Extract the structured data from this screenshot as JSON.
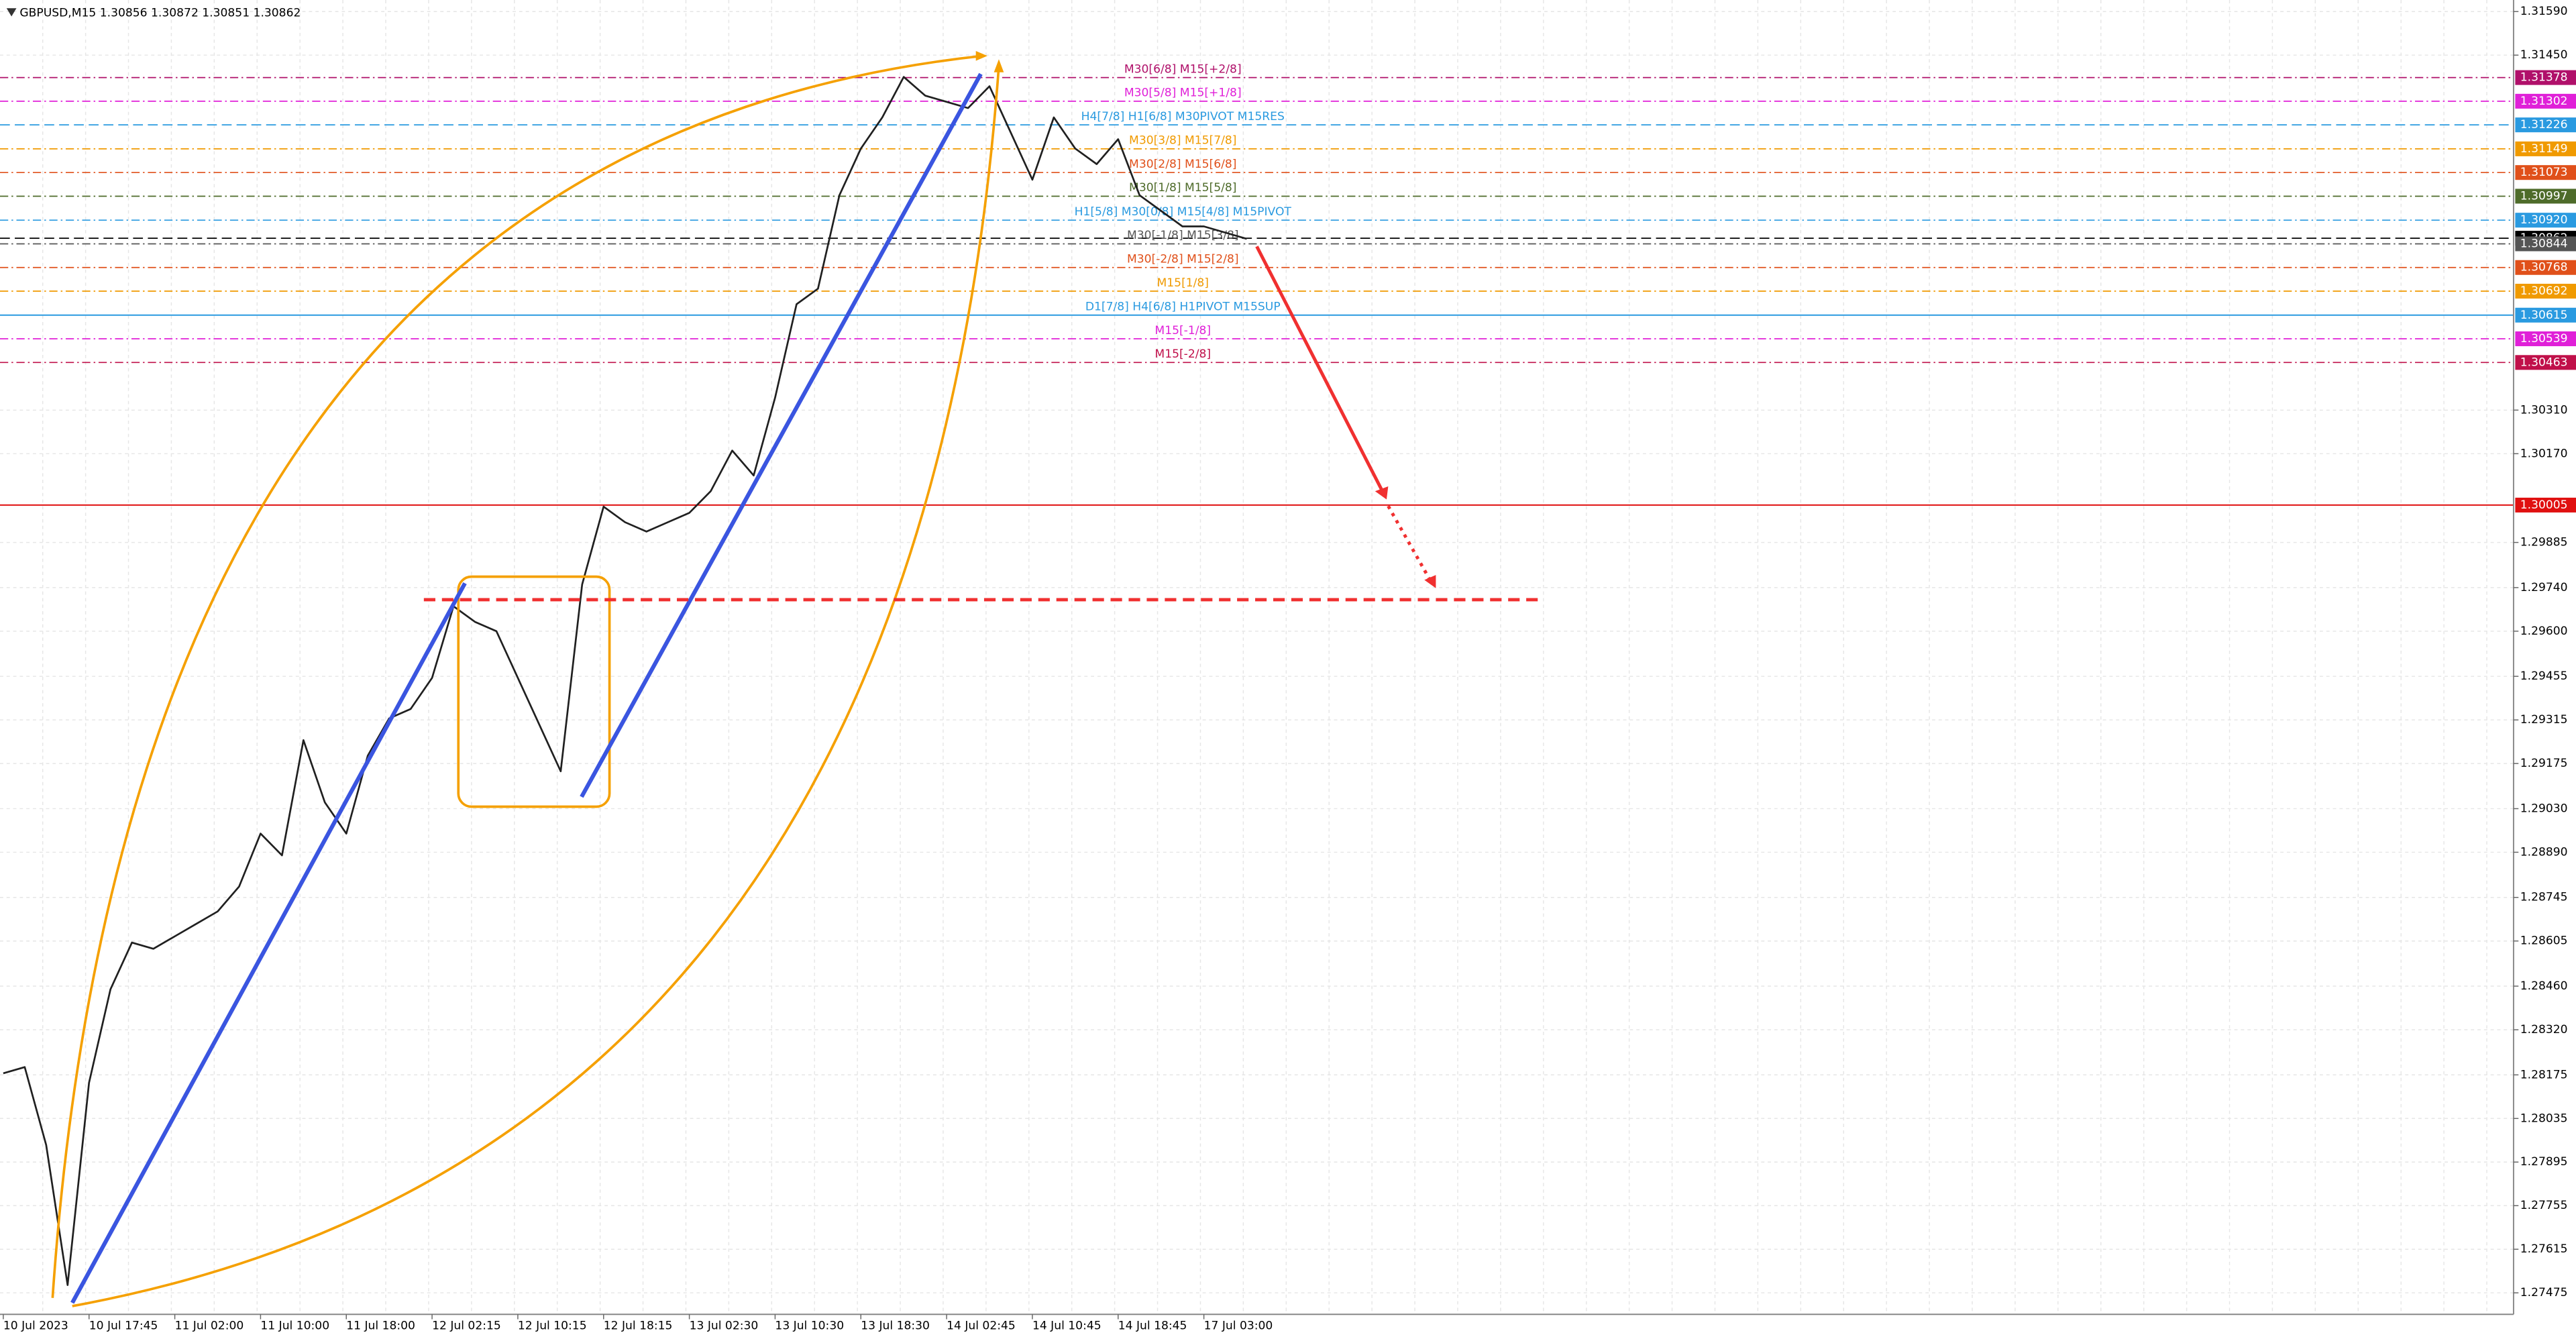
{
  "chart_data": {
    "type": "line",
    "title": "GBPUSD,M15  1.30856 1.30872 1.30851 1.30862",
    "color": "#202020",
    "grid": true,
    "categories": [
      "10 Jul 2023",
      null,
      null,
      null,
      "10 Jul 17:45",
      null,
      null,
      null,
      "11 Jul 02:00",
      null,
      null,
      null,
      "11 Jul 10:00",
      null,
      null,
      null,
      "11 Jul 18:00",
      null,
      null,
      null,
      "12 Jul 02:15",
      null,
      null,
      null,
      "12 Jul 10:15",
      null,
      null,
      null,
      "12 Jul 18:15",
      null,
      null,
      null,
      "13 Jul 02:30",
      null,
      null,
      null,
      "13 Jul 10:30",
      null,
      null,
      null,
      "13 Jul 18:30",
      null,
      null,
      null,
      "14 Jul 02:45",
      null,
      null,
      null,
      "14 Jul 10:45",
      null,
      null,
      null,
      "14 Jul 18:45",
      null,
      null,
      null,
      "17 Jul 03:00",
      null,
      null
    ],
    "values": [
      1.2818,
      1.282,
      1.2795,
      1.275,
      1.2815,
      1.2845,
      1.286,
      1.2858,
      1.2862,
      1.2866,
      1.287,
      1.2878,
      1.2895,
      1.2888,
      1.2925,
      1.2905,
      1.2895,
      1.292,
      1.2932,
      1.2935,
      1.2945,
      1.2968,
      1.2963,
      1.296,
      1.2945,
      1.293,
      1.2915,
      1.2975,
      1.3,
      1.2995,
      1.2992,
      1.2995,
      1.2998,
      1.3005,
      1.3018,
      1.301,
      1.3035,
      1.3065,
      1.307,
      1.31,
      1.3115,
      1.3125,
      1.3138,
      1.3132,
      1.313,
      1.3128,
      1.3135,
      1.312,
      1.3105,
      1.3125,
      1.3115,
      1.311,
      1.3118,
      1.31,
      1.3095,
      1.309,
      1.309,
      1.3088,
      1.3086
    ],
    "ylim": [
      1.27406,
      1.31627
    ],
    "yticks": [
      {
        "value": 1.3159,
        "label": "1.31590"
      },
      {
        "value": 1.3145,
        "label": "1.31450"
      },
      {
        "value": 1.3031,
        "label": "1.30310"
      },
      {
        "value": 1.3017,
        "label": "1.30170"
      },
      1.29885,
      {
        "value": 1.2974,
        "label": "1.29740"
      },
      {
        "value": 1.296,
        "label": "1.29600"
      },
      1.29455,
      1.29315,
      1.29175,
      {
        "value": 1.2903,
        "label": "1.29030"
      },
      {
        "value": 1.2889,
        "label": "1.28890"
      },
      1.28745,
      1.28605,
      {
        "value": 1.2846,
        "label": "1.28460"
      },
      {
        "value": 1.2832,
        "label": "1.28320"
      },
      1.28175,
      1.28035,
      1.27895,
      1.27755,
      1.27615,
      1.27475
    ],
    "levels": [
      {
        "name": "M30[6/8] M15[+2/8]",
        "price": 1.31378,
        "color": "#b0106a",
        "line_style": "dashdot"
      },
      {
        "name": "M30[5/8] M15[+1/8]",
        "price": 1.31302,
        "color": "#e020d8",
        "line_style": "dashdot"
      },
      {
        "name": "H4[7/8] H1[6/8] M30PIVOT M15RES",
        "price": 1.31226,
        "color": "#2a9ae0",
        "line_style": "dashed"
      },
      {
        "name": "M30[3/8] M15[7/8]",
        "price": 1.31149,
        "color": "#f09a00",
        "line_style": "dashdot"
      },
      {
        "name": "M30[2/8] M15[6/8]",
        "price": 1.31073,
        "color": "#e0501a",
        "line_style": "dashdot"
      },
      {
        "name": "M30[1/8] M15[5/8]",
        "price": 1.30997,
        "color": "#4e6b2a",
        "line_style": "dashdot"
      },
      {
        "name": "H1[5/8] M30[0/8] M15[4/8] M15PIVOT",
        "price": {
          "value": 1.3092,
          "label": "1.30920"
        },
        "color": "#2a9ae0",
        "line_style": "dashdot"
      },
      {
        "price": 1.30862,
        "color": "#000000",
        "line_style": "dashed"
      },
      {
        "name": "M30[-1/8] M15[3/8]",
        "price": 1.30844,
        "color": "#555555",
        "line_style": "dashdot"
      },
      {
        "name": "M30[-2/8] M15[2/8]",
        "price": 1.30768,
        "color": "#e0501a",
        "line_style": "dashdot"
      },
      {
        "name": "M15[1/8]",
        "price": 1.30692,
        "color": "#f09a00",
        "line_style": "dashdot"
      },
      {
        "name": "D1[7/8] H4[6/8] H1PIVOT M15SUP",
        "price": 1.30615,
        "color": "#2a9ae0",
        "line_style": "solid"
      },
      {
        "name": "M15[-1/8]",
        "price": 1.30539,
        "color": "#e020d8",
        "line_style": "dashdot"
      },
      {
        "name": "M15[-2/8]",
        "price": 1.30463,
        "color": "#c0104a",
        "line_style": "dashdot"
      },
      {
        "price": 1.30005,
        "color": "#e01010",
        "line_style": "solid"
      }
    ]
  }
}
